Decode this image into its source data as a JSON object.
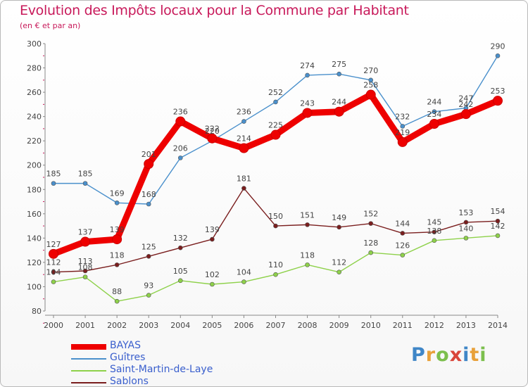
{
  "header": {
    "title": "Evolution des Impôts locaux pour la Commune par Habitant",
    "subtitle": "(en € et par an)"
  },
  "brand": {
    "text": "Proxiti",
    "letters": [
      "P",
      "r",
      "o",
      "x",
      "i",
      "t",
      "i"
    ],
    "colors": [
      "#3f86c7",
      "#e8a13a",
      "#7cbf4d",
      "#d9463b",
      "#3f86c7",
      "#e8a13a",
      "#7cbf4d"
    ]
  },
  "chart_data": {
    "type": "line",
    "title": "Evolution des Impôts locaux pour la Commune par Habitant",
    "subtitle": "(en € et par an)",
    "xlabel": "",
    "ylabel": "",
    "x": [
      "2000",
      "2001",
      "2002",
      "2003",
      "2004",
      "2005",
      "2006",
      "2007",
      "2008",
      "2009",
      "2010",
      "2011",
      "2012",
      "2013",
      "2014"
    ],
    "ylim": [
      80,
      300
    ],
    "yticks": [
      80,
      100,
      120,
      140,
      160,
      180,
      200,
      220,
      240,
      260,
      280,
      300
    ],
    "grid": false,
    "legend": "bottom-left",
    "series": [
      {
        "name": "BAYAS",
        "color": "#ee0000",
        "emphasis": true,
        "values": [
          127,
          137,
          139,
          201,
          236,
          222,
          214,
          225,
          243,
          244,
          258,
          219,
          234,
          242,
          253
        ]
      },
      {
        "name": "Guîtres",
        "color": "#4a90cc",
        "emphasis": false,
        "values": [
          185,
          185,
          169,
          168,
          206,
          220,
          236,
          252,
          274,
          275,
          270,
          232,
          244,
          247,
          290
        ]
      },
      {
        "name": "Saint-Martin-de-Laye",
        "color": "#8ed14a",
        "emphasis": false,
        "values": [
          104,
          108,
          88,
          93,
          105,
          102,
          104,
          110,
          118,
          112,
          128,
          126,
          138,
          140,
          142
        ]
      },
      {
        "name": "Sablons",
        "color": "#7a1e1e",
        "emphasis": false,
        "values": [
          112,
          113,
          118,
          125,
          132,
          139,
          181,
          150,
          151,
          149,
          152,
          144,
          145,
          153,
          154
        ]
      }
    ]
  }
}
